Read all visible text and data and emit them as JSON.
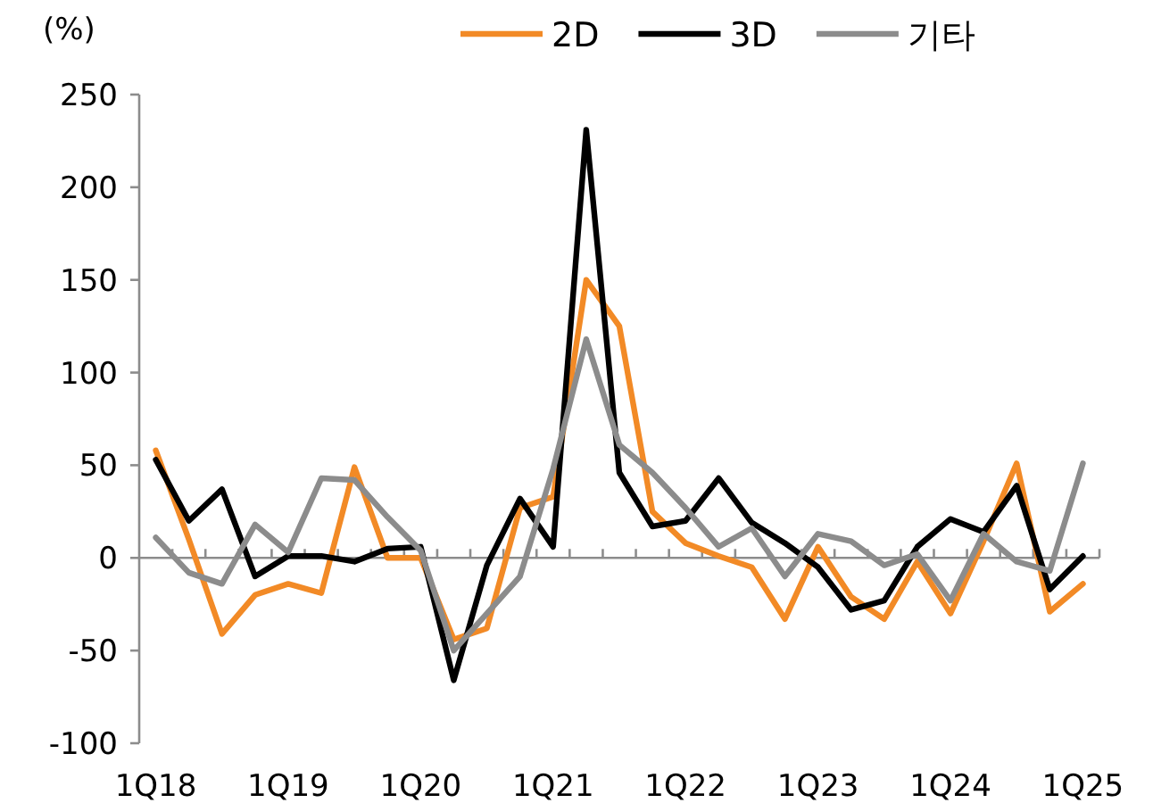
{
  "chart_data": {
    "type": "line",
    "ylabel": "(%)",
    "legend": "top",
    "ylim": [
      -100,
      250
    ],
    "yticks": [
      -100,
      -50,
      0,
      50,
      100,
      150,
      200,
      250
    ],
    "categories": [
      "1Q18",
      null,
      null,
      null,
      "1Q19",
      null,
      null,
      null,
      "1Q20",
      null,
      null,
      null,
      "1Q21",
      null,
      null,
      null,
      "1Q22",
      null,
      null,
      null,
      "1Q23",
      null,
      null,
      null,
      "1Q24",
      null,
      null,
      null,
      "1Q25"
    ],
    "series": [
      {
        "name": "2D",
        "color": "#f28a26",
        "values": [
          58,
          10,
          -41,
          -20,
          -14,
          -19,
          49,
          0,
          0,
          -44,
          -38,
          27,
          33,
          150,
          125,
          25,
          8,
          1,
          -5,
          -33,
          6,
          -21,
          -33,
          -2,
          -30,
          9,
          51,
          -29,
          -14
        ]
      },
      {
        "name": "3D",
        "color": "#000000",
        "values": [
          53,
          20,
          37,
          -10,
          1,
          1,
          -2,
          5,
          6,
          -66,
          -4,
          32,
          6,
          231,
          46,
          17,
          20,
          43,
          19,
          8,
          -5,
          -28,
          -23,
          6,
          21,
          14,
          39,
          -17,
          1
        ]
      },
      {
        "name": "기타",
        "color": "#8c8c8c",
        "values": [
          11,
          -8,
          -14,
          18,
          3,
          43,
          42,
          22,
          4,
          -50,
          -30,
          -10,
          48,
          118,
          61,
          46,
          27,
          6,
          16,
          -10,
          13,
          9,
          -4,
          2,
          -23,
          13,
          -2,
          -7,
          51
        ]
      }
    ]
  }
}
